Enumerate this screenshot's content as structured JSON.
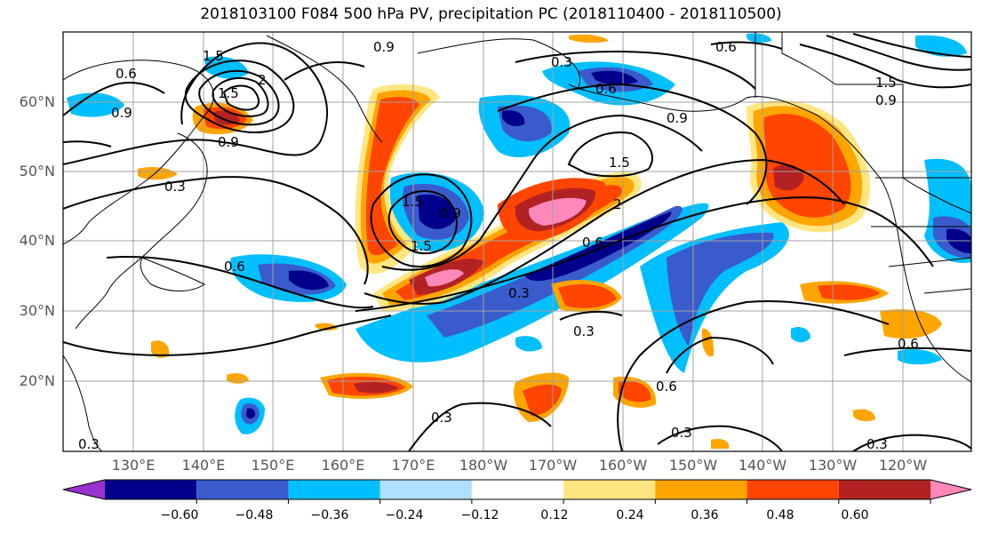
{
  "title": "2018103100 F084 500 hPa PV, precipitation PC (2018110400 - 2018110500)",
  "lat_labels": [
    "60°N",
    "50°N",
    "40°N",
    "30°N",
    "20°N"
  ],
  "lon_labels": [
    "130°E",
    "140°E",
    "150°E",
    "160°E",
    "170°E",
    "180°W",
    "170°W",
    "160°W",
    "150°W",
    "140°W",
    "130°W",
    "120°W"
  ],
  "colorbar": {
    "ticks": [
      "−0.60",
      "−0.48",
      "−0.36",
      "−0.24",
      "−0.12",
      "0.12",
      "0.24",
      "0.36",
      "0.48",
      "0.60"
    ],
    "colors": [
      "#9932cc",
      "#00008b",
      "#3a5bcc",
      "#00bfff",
      "#b0e0ff",
      "#ffffff",
      "#ffe680",
      "#ffa500",
      "#ff4500",
      "#b22222",
      "#ff88bb"
    ]
  },
  "contour_labels": [
    "1.5",
    "0.6",
    "0.9",
    "0.3",
    "0.6",
    "0.6",
    "1.5",
    "0.9",
    "0.6",
    "1.5",
    "0.9",
    "0.9",
    "2",
    "0.3",
    "0.9",
    "1.5",
    "2",
    "0.6",
    "0.9",
    "1.5",
    "1.5",
    "0.6",
    "0.3",
    "0.3",
    "0.3",
    "0.6",
    "0.3",
    "0.3",
    "0.3"
  ]
}
